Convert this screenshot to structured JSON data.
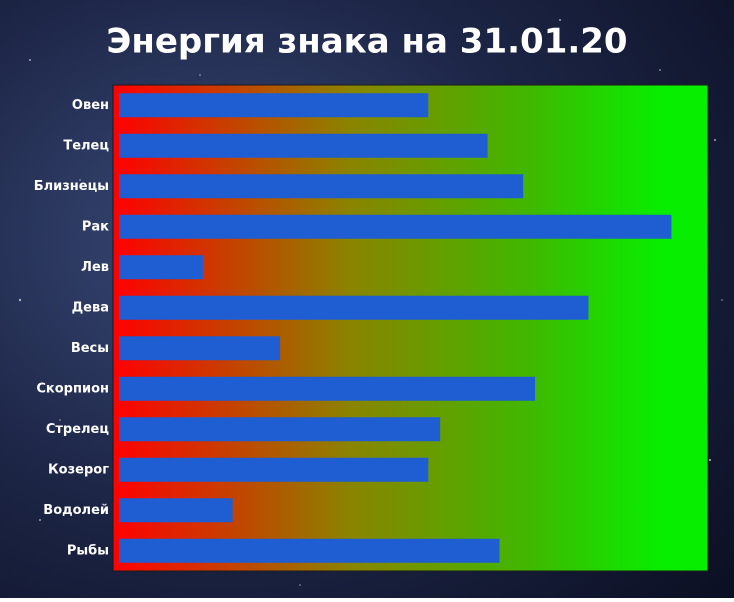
{
  "chart_data": {
    "type": "barh",
    "title": "Энергия знака на 31.01.20",
    "categories": [
      "Овен",
      "Телец",
      "Близнецы",
      "Рак",
      "Лев",
      "Дева",
      "Весы",
      "Скорпион",
      "Стрелец",
      "Козерог",
      "Водолей",
      "Рыбы"
    ],
    "values": [
      53,
      63,
      69,
      94,
      15,
      80,
      28,
      71,
      55,
      53,
      20,
      65
    ],
    "color": "#1f5dd2",
    "xlim": [
      0,
      100
    ]
  }
}
